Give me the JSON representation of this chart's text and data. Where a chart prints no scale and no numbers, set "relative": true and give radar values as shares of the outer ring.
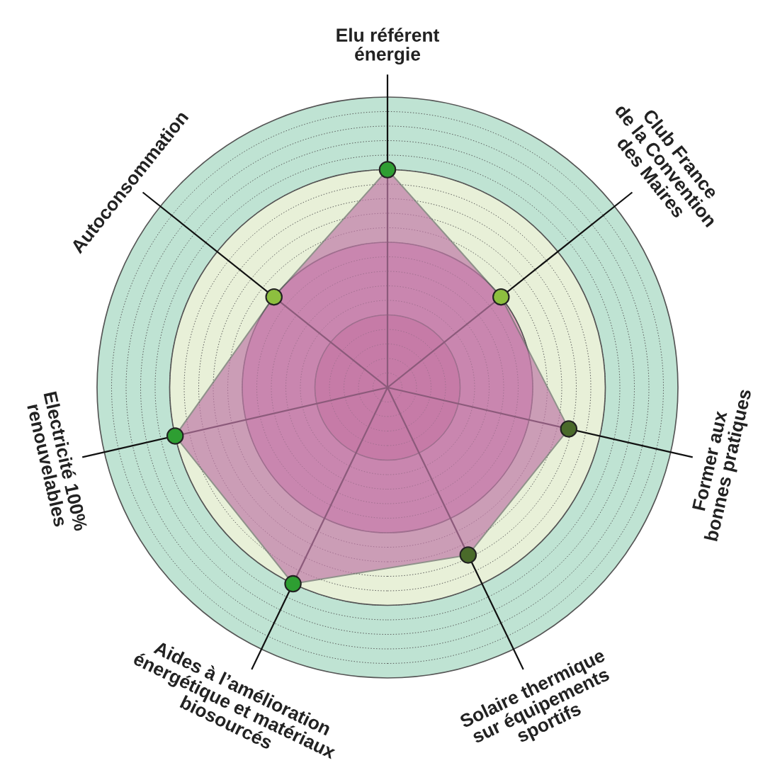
{
  "chart_data": {
    "type": "radar",
    "relative": true,
    "grid": true,
    "marker": "circle",
    "categories": [
      "Elu référent\nénergie",
      "Club France\nde la Convention\ndes Maires",
      "Former aux\nbonnes pratiques",
      "Solaire thermique\nsur équipements\nsportifs",
      "Aides à l’amélioration\nénergétique et matériaux\nbiosourcés",
      "Electricité 100%\nrenouvelables",
      "Autoconsommation"
    ],
    "series": [
      {
        "color": "#c07aa8",
        "colors": [
          "#2e9e32",
          "#8dbf3f",
          "#4a6a2a",
          "#4a6a2a",
          "#2e9e32",
          "#2e9e32",
          "#8dbf3f"
        ],
        "values": [
          0.75,
          0.5,
          0.64,
          0.64,
          0.75,
          0.75,
          0.5
        ]
      }
    ]
  }
}
